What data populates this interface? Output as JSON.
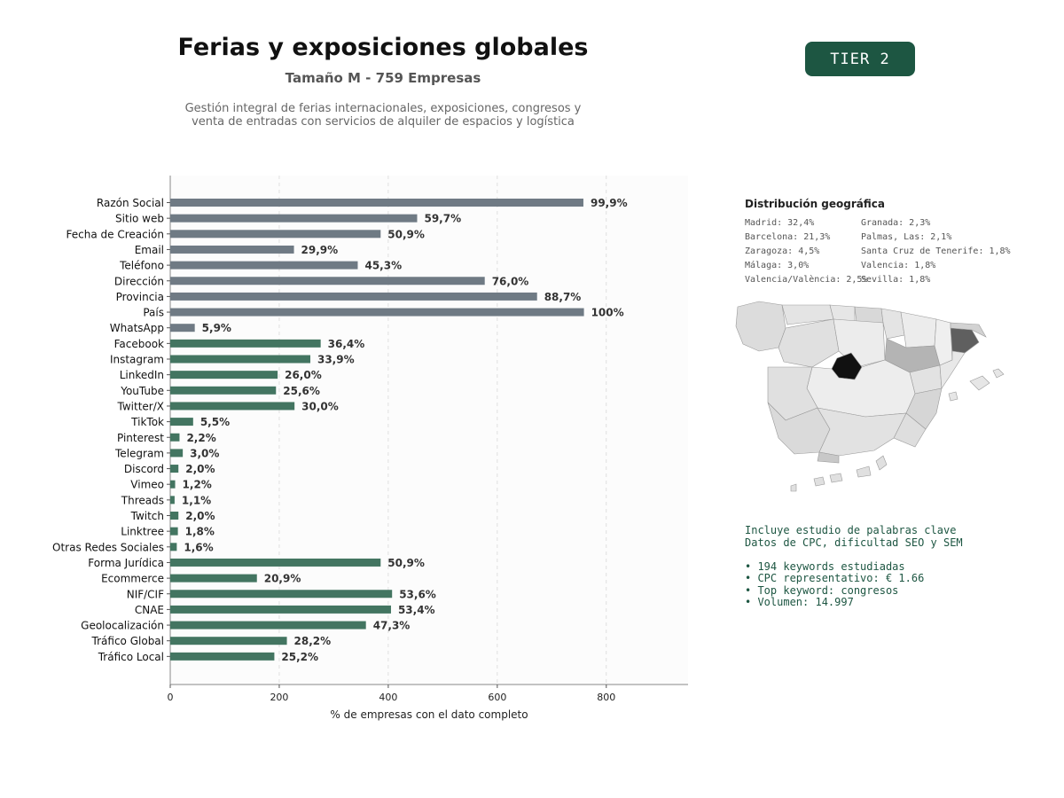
{
  "header": {
    "title": "Ferias y exposiciones globales",
    "subtitle": "Tamaño M - 759 Empresas",
    "description_line1": "Gestión integral de ferias internacionales, exposiciones, congresos y",
    "description_line2": "venta de entradas con servicios de alquiler de espacios y logística",
    "tier_badge": "TIER 2"
  },
  "colors": {
    "bar_gray": "#6f7a84",
    "bar_green": "#437561",
    "badge_bg": "#1d5642",
    "kw_text": "#1d5642"
  },
  "chart_data": {
    "type": "bar",
    "orientation": "horizontal",
    "xlabel": "% de empresas con el dato completo",
    "xlim": [
      0,
      950
    ],
    "xticks": [
      0,
      200,
      400,
      600,
      800
    ],
    "grid": "vertical dashed",
    "categories": [
      "Razón Social",
      "Sitio web",
      "Fecha de Creación",
      "Email",
      "Teléfono",
      "Dirección",
      "Provincia",
      "País",
      "WhatsApp",
      "Facebook",
      "Instagram",
      "LinkedIn",
      "YouTube",
      "Twitter/X",
      "TikTok",
      "Pinterest",
      "Telegram",
      "Discord",
      "Vimeo",
      "Threads",
      "Twitch",
      "Linktree",
      "Otras Redes Sociales",
      "Forma Jurídica",
      "Ecommerce",
      "NIF/CIF",
      "CNAE",
      "Geolocalización",
      "Tráfico Global",
      "Tráfico Local"
    ],
    "values": [
      758,
      453,
      386,
      227,
      344,
      577,
      673,
      759,
      45,
      276,
      257,
      197,
      194,
      228,
      42,
      17,
      23,
      15,
      9,
      8,
      15,
      14,
      12,
      386,
      159,
      407,
      405,
      359,
      214,
      191
    ],
    "labels": [
      "99,9%",
      "59,7%",
      "50,9%",
      "29,9%",
      "45,3%",
      "76,0%",
      "88,7%",
      "100%",
      "5,9%",
      "36,4%",
      "33,9%",
      "26,0%",
      "25,6%",
      "30,0%",
      "5,5%",
      "2,2%",
      "3,0%",
      "2,0%",
      "1,2%",
      "1,1%",
      "2,0%",
      "1,8%",
      "1,6%",
      "50,9%",
      "20,9%",
      "53,6%",
      "53,4%",
      "47,3%",
      "28,2%",
      "25,2%"
    ],
    "color_groups": [
      "gray",
      "gray",
      "gray",
      "gray",
      "gray",
      "gray",
      "gray",
      "gray",
      "gray",
      "green",
      "green",
      "green",
      "green",
      "green",
      "green",
      "green",
      "green",
      "green",
      "green",
      "green",
      "green",
      "green",
      "green",
      "green",
      "green",
      "green",
      "green",
      "green",
      "green",
      "green"
    ]
  },
  "geo": {
    "title": "Distribución geográfica",
    "left_column": [
      "Madrid: 32,4%",
      "Barcelona: 21,3%",
      "Zaragoza: 4,5%",
      "Málaga: 3,0%",
      "Valencia/València: 2,5%"
    ],
    "right_column": [
      "Granada: 2,3%",
      "Palmas, Las: 2,1%",
      "Santa Cruz de Tenerife: 1,8%",
      "Valencia: 1,8%",
      "Sevilla: 1,8%"
    ]
  },
  "keywords": {
    "line1": "Incluye estudio de palabras clave",
    "line2": "Datos de CPC, dificultad SEO y SEM",
    "bullets": [
      "• 194 keywords estudiadas",
      "• CPC representativo: € 1.66",
      "• Top keyword: congresos",
      "• Volumen: 14.997"
    ]
  }
}
